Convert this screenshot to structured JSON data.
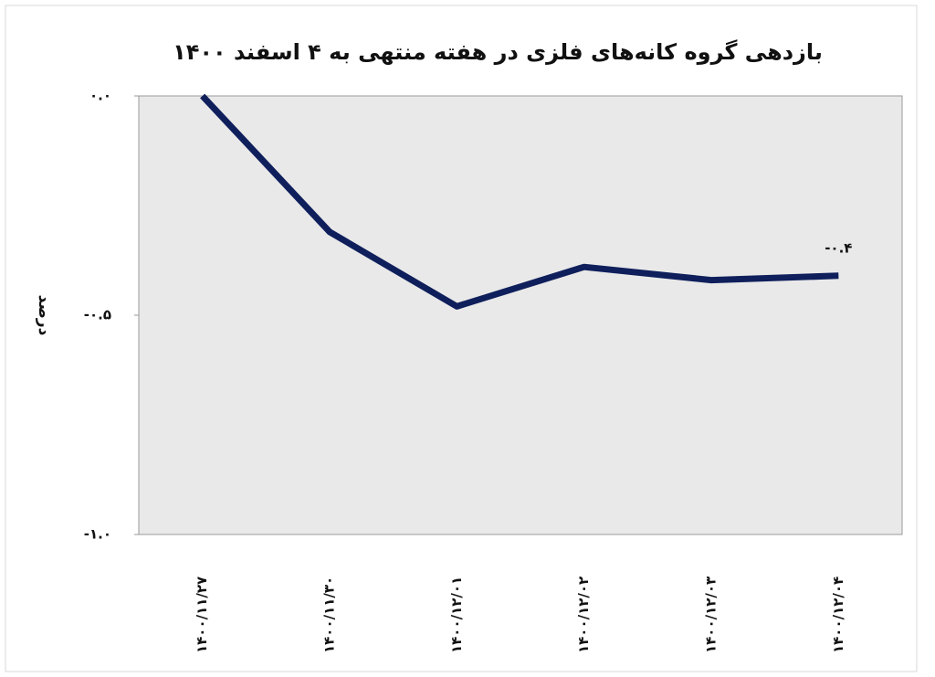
{
  "chart_data": {
    "type": "line",
    "title": "بازدهی گروه کانه‌های فلزی در هفته منتهی به ۴ اسفند ۱۴۰۰",
    "y_label": "درصد",
    "categories": [
      "۱۴۰۰/۱۱/۲۷",
      "۱۴۰۰/۱۱/۳۰",
      "۱۴۰۰/۱۲/۰۱",
      "۱۴۰۰/۱۲/۰۲",
      "۱۴۰۰/۱۲/۰۳",
      "۱۴۰۰/۱۲/۰۴"
    ],
    "series": [
      {
        "color": "#0f1f5c",
        "values": [
          0,
          -0.31,
          -0.48,
          -0.39,
          -0.42,
          -0.41
        ],
        "value_labels": [
          null,
          null,
          null,
          null,
          null,
          "-۰.۴"
        ]
      }
    ],
    "ylim": [
      -1.0,
      0
    ],
    "yticks": [
      {
        "value": 0,
        "label": "۰.۰"
      },
      {
        "value": -0.5,
        "label": "-۰.۵"
      },
      {
        "value": -1.0,
        "label": "-۱.۰"
      }
    ],
    "grid": false
  }
}
